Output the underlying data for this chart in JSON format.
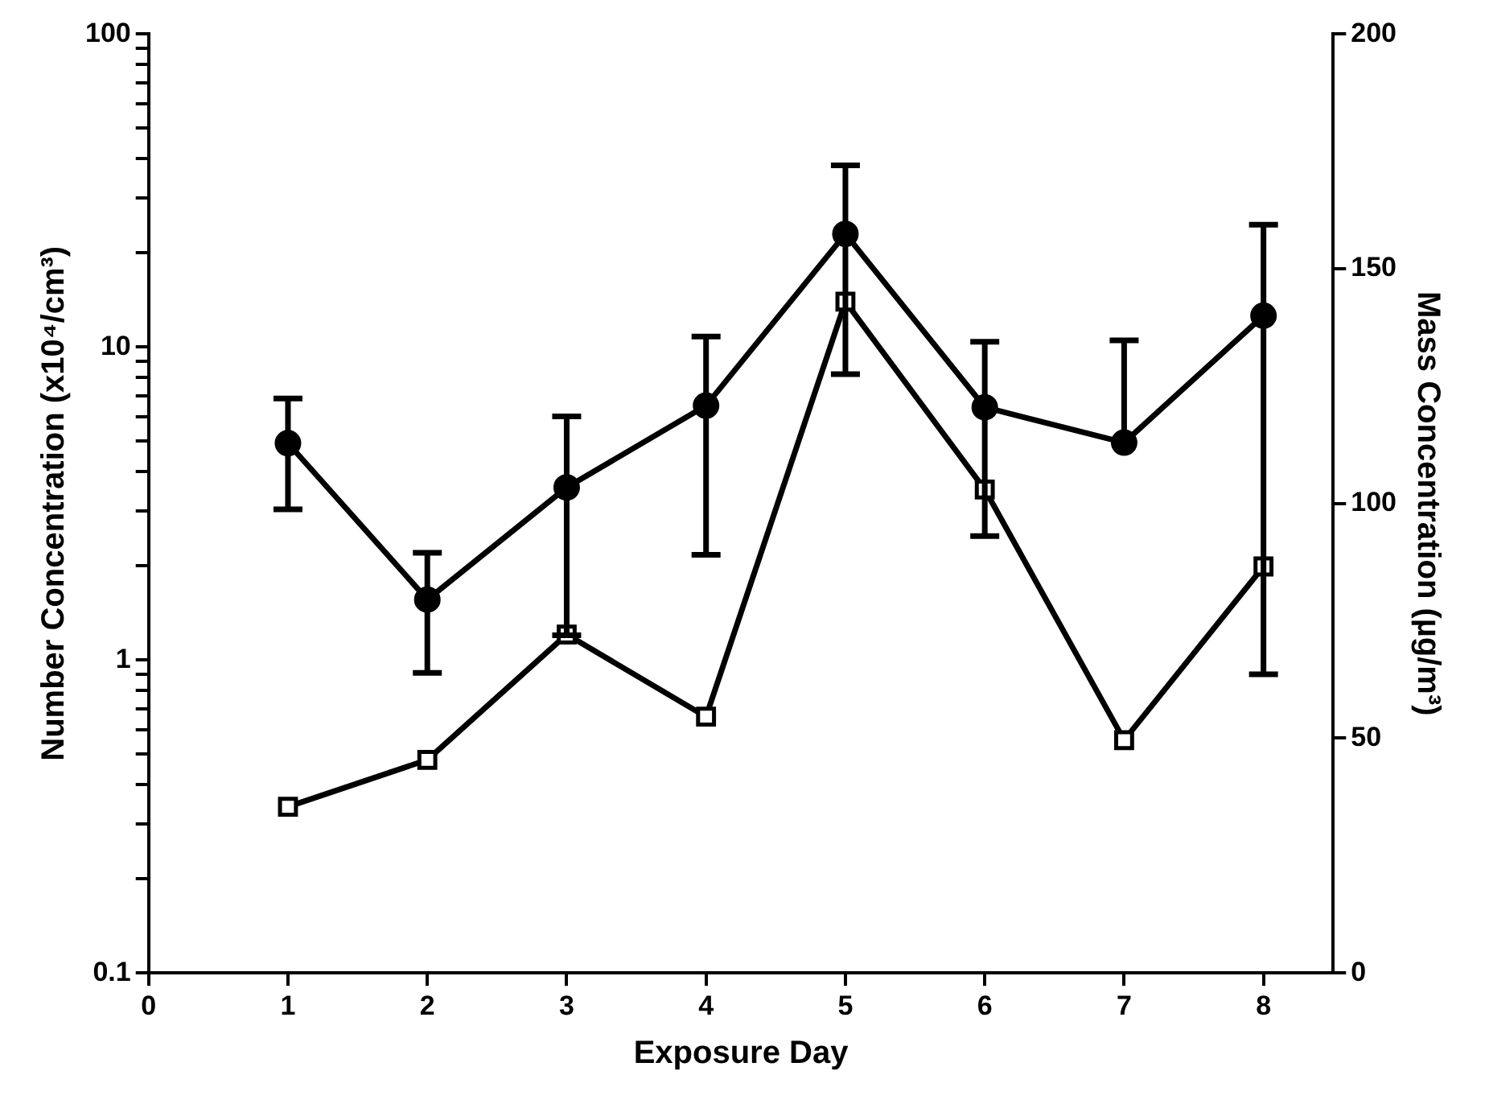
{
  "chart_data": {
    "type": "line",
    "xlabel": "Exposure Day",
    "ylabel": "Number Concentration (x10⁴/cm³)",
    "y2label": "Mass Concentration (µg/m³)",
    "x": [
      1,
      2,
      3,
      4,
      5,
      6,
      7,
      8
    ],
    "series": [
      {
        "color": "#000000",
        "marker": "circle",
        "values": [
          4.93,
          1.56,
          3.56,
          6.5,
          23.0,
          6.42,
          4.95,
          12.6
        ],
        "errors": [
          [
            3.03,
            6.85
          ],
          [
            0.91,
            2.2
          ],
          [
            1.2,
            6.0
          ],
          [
            2.17,
            10.8
          ],
          [
            8.19,
            38.1
          ],
          [
            2.49,
            10.4
          ],
          [
            4.95,
            10.5
          ],
          [
            0.9,
            24.6
          ]
        ]
      },
      {
        "color": "#000000",
        "marker": "square",
        "axis": "y2",
        "values": [
          35.4,
          45.4,
          72.1,
          54.6,
          143,
          103,
          49.6,
          86.6
        ]
      }
    ],
    "log": "y",
    "xlim": [
      0,
      8.5
    ],
    "xticks": [
      0,
      1,
      2,
      3,
      4,
      5,
      6,
      7,
      8
    ],
    "ylim": [
      0.1,
      100
    ],
    "yticks": [
      0.1,
      {
        "value": 0.2,
        "label": null
      },
      {
        "value": 0.3,
        "label": null
      },
      {
        "value": 0.4,
        "label": null
      },
      {
        "value": 0.5,
        "label": null
      },
      {
        "value": 0.6,
        "label": null
      },
      {
        "value": 0.7,
        "label": null
      },
      {
        "value": 0.8,
        "label": null
      },
      {
        "value": 0.9,
        "label": null
      },
      1,
      {
        "value": 2,
        "label": null
      },
      {
        "value": 3,
        "label": null
      },
      {
        "value": 4,
        "label": null
      },
      {
        "value": 5,
        "label": null
      },
      {
        "value": 6,
        "label": null
      },
      {
        "value": 7,
        "label": null
      },
      {
        "value": 8,
        "label": null
      },
      {
        "value": 9,
        "label": null
      },
      10,
      {
        "value": 20,
        "label": null
      },
      {
        "value": 30,
        "label": null
      },
      {
        "value": 40,
        "label": null
      },
      {
        "value": 50,
        "label": null
      },
      {
        "value": 60,
        "label": null
      },
      {
        "value": 70,
        "label": null
      },
      {
        "value": 80,
        "label": null
      },
      {
        "value": 90,
        "label": null
      },
      100
    ],
    "y2lim": [
      0,
      200
    ],
    "y2ticks": [
      0,
      50,
      100,
      150,
      200
    ],
    "grid": false,
    "legend": false
  }
}
